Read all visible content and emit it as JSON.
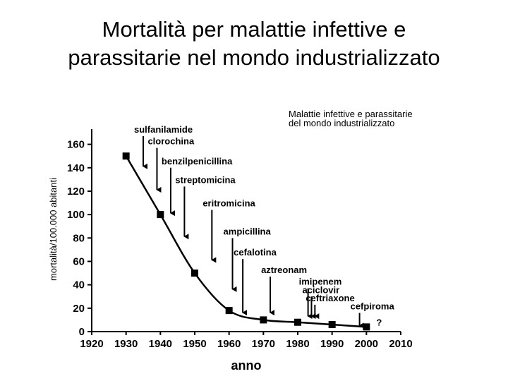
{
  "title_lines": [
    "Mortalità per malattie infettive e",
    "parassitarie nel mondo industrializzato"
  ],
  "chart_data": {
    "type": "line",
    "title": "Mortalità per malattie infettive e parassitarie nel mondo industrializzato",
    "subtitle_lines": [
      "Malattie infettive e parassitarie",
      "del mondo industrializzato"
    ],
    "xlabel": "anno",
    "ylabel": "mortalità/100.000 abitanti",
    "xlim": [
      1920,
      2010
    ],
    "ylim": [
      0,
      170
    ],
    "x_ticks": [
      1920,
      1930,
      1940,
      1950,
      1960,
      1970,
      1980,
      1990,
      2000,
      2010
    ],
    "y_ticks": [
      0,
      20,
      40,
      60,
      80,
      100,
      120,
      140,
      160
    ],
    "x": [
      1930,
      1940,
      1950,
      1960,
      1970,
      1980,
      1990,
      2000
    ],
    "values": [
      150,
      100,
      50,
      18,
      10,
      8,
      6,
      4
    ],
    "end_marker": "?",
    "annotations": [
      {
        "label": "sulfanilamide",
        "year": 1935,
        "label_y": 170,
        "arrow_to": 140
      },
      {
        "label": "clorochina",
        "year": 1939,
        "label_y": 160,
        "arrow_to": 120
      },
      {
        "label": "benzilpenicillina",
        "year": 1943,
        "label_y": 143,
        "arrow_to": 100
      },
      {
        "label": "streptomicina",
        "year": 1947,
        "label_y": 127,
        "arrow_to": 80
      },
      {
        "label": "eritromicina",
        "year": 1955,
        "label_y": 107,
        "arrow_to": 60
      },
      {
        "label": "ampicillina",
        "year": 1961,
        "label_y": 83,
        "arrow_to": 35
      },
      {
        "label": "cefalotina",
        "year": 1964,
        "label_y": 65,
        "arrow_to": 15
      },
      {
        "label": "aztreonam",
        "year": 1972,
        "label_y": 50,
        "arrow_to": 15
      },
      {
        "label": "imipenem",
        "year": 1983,
        "label_y": 40,
        "arrow_to": 12
      },
      {
        "label": "aciclovir",
        "year": 1984,
        "label_y": 33,
        "arrow_to": 12
      },
      {
        "label": "ceftriaxone",
        "year": 1985,
        "label_y": 26,
        "arrow_to": 12
      },
      {
        "label": "cefpiroma",
        "year": 1998,
        "label_y": 19,
        "arrow_to": 4
      }
    ]
  }
}
